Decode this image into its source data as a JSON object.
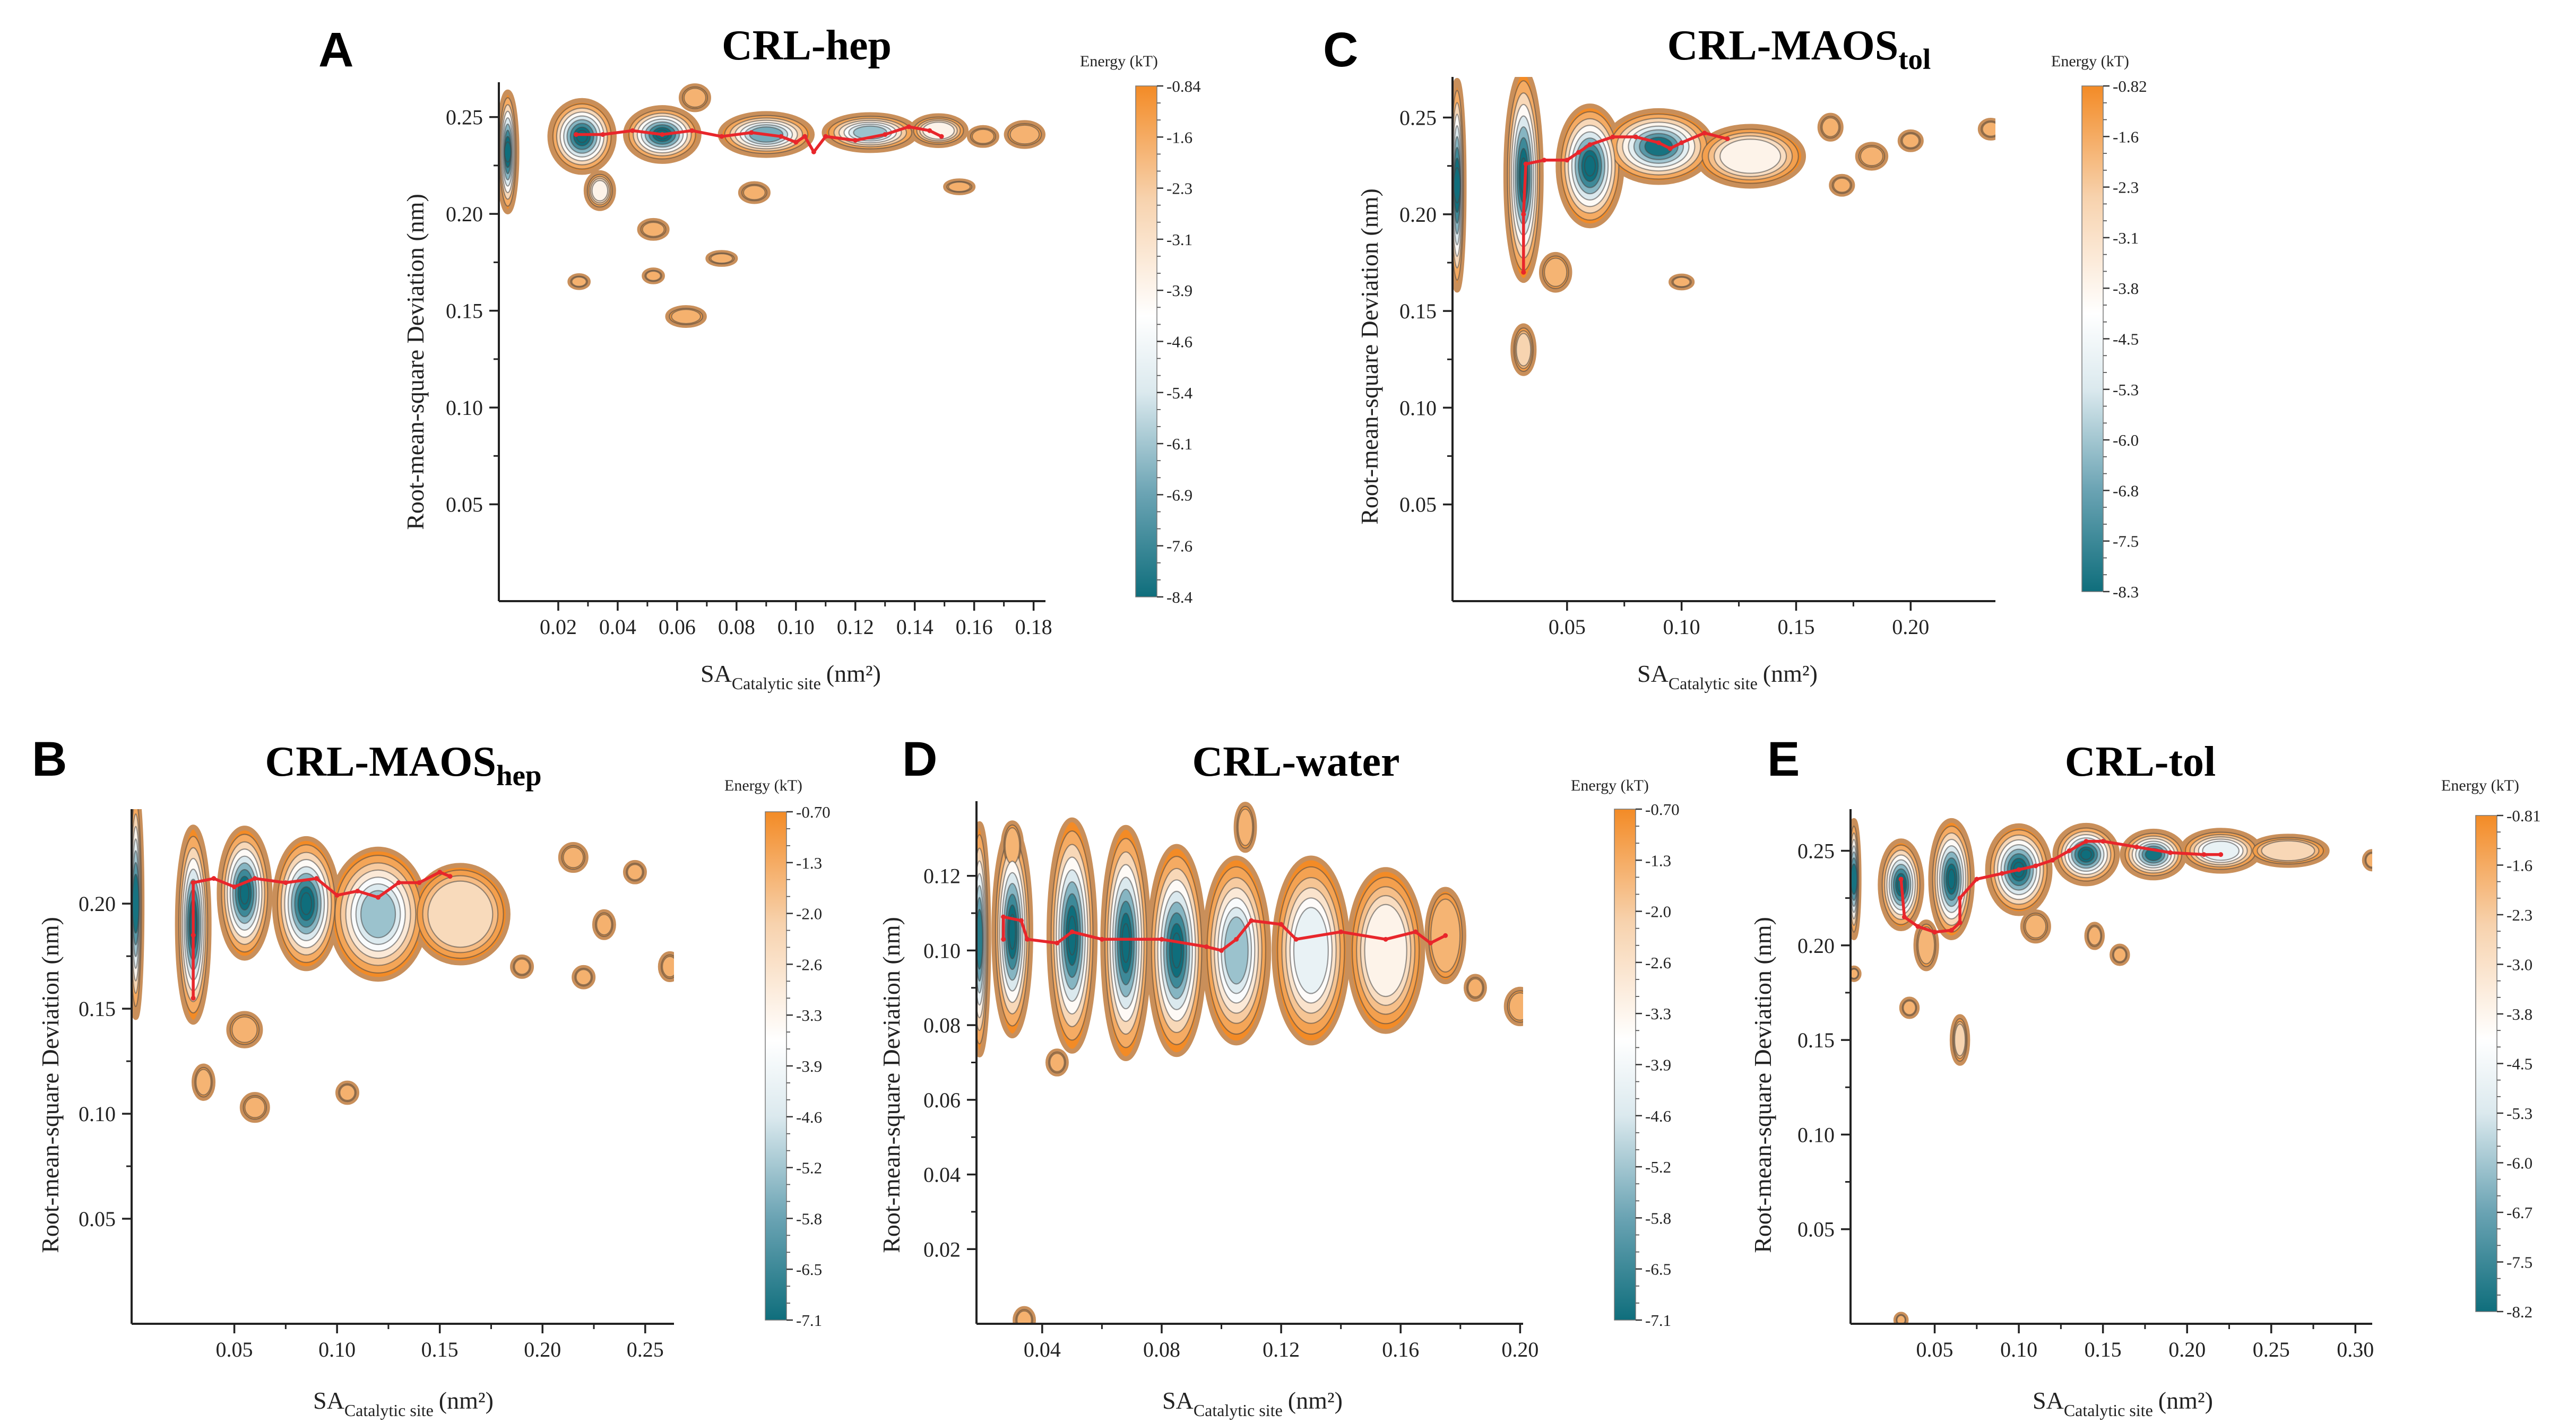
{
  "figure": {
    "energy_unit_label": "Energy (kT)",
    "colors": {
      "deep": "#0f6e7c",
      "mid": "#6aa3b3",
      "light": "#dbe9ee",
      "white": "#ffffff",
      "peach": "#f7d2ad",
      "orange": "#f38b26",
      "rim": "#c98f5a",
      "path": "#e8262b",
      "axis": "#222222"
    }
  },
  "chart_data": [
    {
      "id": "A",
      "type": "heatmap",
      "panel_letter": "A",
      "title": "CRL-hep",
      "title_sub": "",
      "xlabel_main": "SA",
      "xlabel_sub": "Catalytic site",
      "xlabel_unit": "(nm²)",
      "ylabel": "Root-mean-square Deviation (nm)",
      "xlim": [
        0.0,
        0.184
      ],
      "ylim": [
        0.0,
        0.268
      ],
      "xticks": [
        "0.02",
        "0.04",
        "0.06",
        "0.08",
        "0.10",
        "0.12",
        "0.14",
        "0.16",
        "0.18"
      ],
      "yticks": [
        "0.05",
        "0.10",
        "0.15",
        "0.20",
        "0.25"
      ],
      "colorbar_ticks": [
        "-0.84",
        "-1.6",
        "-2.3",
        "-3.1",
        "-3.9",
        "-4.6",
        "-5.4",
        "-6.1",
        "-6.9",
        "-7.6",
        "-8.4"
      ],
      "wells": [
        [
          0.003,
          0.232,
          0.002,
          0.02,
          2.2
        ],
        [
          0.028,
          0.24,
          0.007,
          0.012,
          2.0
        ],
        [
          0.055,
          0.241,
          0.008,
          0.009,
          1.8
        ],
        [
          0.09,
          0.241,
          0.01,
          0.007,
          1.4
        ],
        [
          0.125,
          0.242,
          0.01,
          0.006,
          1.2
        ],
        [
          0.148,
          0.243,
          0.006,
          0.005,
          0.8
        ],
        [
          0.034,
          0.212,
          0.003,
          0.006,
          0.8
        ],
        [
          0.052,
          0.192,
          0.003,
          0.003,
          0.3
        ],
        [
          0.086,
          0.211,
          0.003,
          0.003,
          0.3
        ],
        [
          0.027,
          0.165,
          0.002,
          0.002,
          0.3
        ],
        [
          0.063,
          0.147,
          0.004,
          0.003,
          0.3
        ],
        [
          0.075,
          0.177,
          0.003,
          0.002,
          0.3
        ],
        [
          0.052,
          0.168,
          0.002,
          0.002,
          0.25
        ],
        [
          0.155,
          0.214,
          0.003,
          0.002,
          0.25
        ],
        [
          0.177,
          0.241,
          0.004,
          0.004,
          0.35
        ],
        [
          0.163,
          0.24,
          0.003,
          0.003,
          0.25
        ],
        [
          0.066,
          0.26,
          0.003,
          0.004,
          0.35
        ]
      ],
      "path": [
        [
          0.026,
          0.241
        ],
        [
          0.035,
          0.241
        ],
        [
          0.045,
          0.243
        ],
        [
          0.055,
          0.241
        ],
        [
          0.065,
          0.243
        ],
        [
          0.075,
          0.24
        ],
        [
          0.085,
          0.242
        ],
        [
          0.095,
          0.24
        ],
        [
          0.1,
          0.237
        ],
        [
          0.103,
          0.24
        ],
        [
          0.106,
          0.232
        ],
        [
          0.11,
          0.24
        ],
        [
          0.12,
          0.238
        ],
        [
          0.13,
          0.241
        ],
        [
          0.138,
          0.245
        ],
        [
          0.145,
          0.243
        ],
        [
          0.149,
          0.24
        ]
      ]
    },
    {
      "id": "C",
      "type": "heatmap",
      "panel_letter": "C",
      "title": "CRL-MAOS",
      "title_sub": "tol",
      "xlabel_main": "SA",
      "xlabel_sub": "Catalytic site",
      "xlabel_unit": "(nm²)",
      "ylabel": "Root-mean-square Deviation (nm)",
      "xlim": [
        0.0,
        0.237
      ],
      "ylim": [
        0.0,
        0.271
      ],
      "xticks": [
        "0.05",
        "0.10",
        "0.15",
        "0.20"
      ],
      "yticks": [
        "0.05",
        "0.10",
        "0.15",
        "0.20",
        "0.25"
      ],
      "colorbar_ticks": [
        "-0.82",
        "-1.6",
        "-2.3",
        "-3.1",
        "-3.8",
        "-4.5",
        "-5.3",
        "-6.0",
        "-6.8",
        "-7.5",
        "-8.3"
      ],
      "wells": [
        [
          0.002,
          0.215,
          0.002,
          0.035,
          1.8
        ],
        [
          0.031,
          0.22,
          0.005,
          0.035,
          2.4
        ],
        [
          0.06,
          0.225,
          0.009,
          0.02,
          1.9
        ],
        [
          0.09,
          0.235,
          0.015,
          0.012,
          1.6
        ],
        [
          0.13,
          0.23,
          0.015,
          0.01,
          0.8
        ],
        [
          0.031,
          0.13,
          0.003,
          0.008,
          0.5
        ],
        [
          0.045,
          0.17,
          0.004,
          0.006,
          0.4
        ],
        [
          0.1,
          0.165,
          0.003,
          0.002,
          0.3
        ],
        [
          0.183,
          0.23,
          0.004,
          0.004,
          0.35
        ],
        [
          0.2,
          0.238,
          0.003,
          0.003,
          0.3
        ],
        [
          0.165,
          0.245,
          0.003,
          0.004,
          0.3
        ],
        [
          0.235,
          0.244,
          0.003,
          0.003,
          0.3
        ],
        [
          0.17,
          0.215,
          0.003,
          0.003,
          0.25
        ]
      ],
      "path": [
        [
          0.031,
          0.17
        ],
        [
          0.031,
          0.2
        ],
        [
          0.032,
          0.226
        ],
        [
          0.04,
          0.228
        ],
        [
          0.05,
          0.228
        ],
        [
          0.055,
          0.232
        ],
        [
          0.06,
          0.236
        ],
        [
          0.07,
          0.24
        ],
        [
          0.08,
          0.24
        ],
        [
          0.09,
          0.237
        ],
        [
          0.095,
          0.234
        ],
        [
          0.1,
          0.237
        ],
        [
          0.11,
          0.242
        ],
        [
          0.12,
          0.239
        ]
      ]
    },
    {
      "id": "B",
      "type": "heatmap",
      "panel_letter": "B",
      "title": "CRL-MAOS",
      "title_sub": "hep",
      "xlabel_main": "SA",
      "xlabel_sub": "Catalytic site",
      "xlabel_unit": "(nm²)",
      "ylabel": "Root-mean-square Deviation (nm)",
      "xlim": [
        0.0,
        0.264
      ],
      "ylim": [
        0.0,
        0.245
      ],
      "xticks": [
        "0.05",
        "0.10",
        "0.15",
        "0.20",
        "0.25"
      ],
      "yticks": [
        "0.05",
        "0.10",
        "0.15",
        "0.20"
      ],
      "colorbar_ticks": [
        "-0.70",
        "-1.3",
        "-2.0",
        "-2.6",
        "-3.3",
        "-3.9",
        "-4.6",
        "-5.2",
        "-5.8",
        "-6.5",
        "-7.1"
      ],
      "wells": [
        [
          0.002,
          0.2,
          0.002,
          0.035,
          1.6
        ],
        [
          0.03,
          0.19,
          0.005,
          0.03,
          2.4
        ],
        [
          0.055,
          0.205,
          0.008,
          0.02,
          2.0
        ],
        [
          0.085,
          0.2,
          0.01,
          0.02,
          1.8
        ],
        [
          0.12,
          0.195,
          0.015,
          0.02,
          1.2
        ],
        [
          0.16,
          0.195,
          0.015,
          0.015,
          0.7
        ],
        [
          0.035,
          0.115,
          0.003,
          0.005,
          0.4
        ],
        [
          0.06,
          0.103,
          0.004,
          0.004,
          0.35
        ],
        [
          0.105,
          0.11,
          0.003,
          0.003,
          0.3
        ],
        [
          0.215,
          0.222,
          0.004,
          0.004,
          0.35
        ],
        [
          0.23,
          0.19,
          0.003,
          0.004,
          0.3
        ],
        [
          0.22,
          0.165,
          0.003,
          0.003,
          0.3
        ],
        [
          0.262,
          0.17,
          0.003,
          0.004,
          0.3
        ],
        [
          0.245,
          0.215,
          0.003,
          0.003,
          0.3
        ],
        [
          0.19,
          0.17,
          0.003,
          0.003,
          0.25
        ],
        [
          0.055,
          0.14,
          0.005,
          0.005,
          0.35
        ]
      ],
      "path": [
        [
          0.03,
          0.155
        ],
        [
          0.03,
          0.185
        ],
        [
          0.03,
          0.21
        ],
        [
          0.04,
          0.212
        ],
        [
          0.05,
          0.208
        ],
        [
          0.06,
          0.212
        ],
        [
          0.075,
          0.21
        ],
        [
          0.09,
          0.212
        ],
        [
          0.1,
          0.204
        ],
        [
          0.11,
          0.206
        ],
        [
          0.12,
          0.203
        ],
        [
          0.13,
          0.21
        ],
        [
          0.14,
          0.21
        ],
        [
          0.15,
          0.215
        ],
        [
          0.155,
          0.213
        ]
      ]
    },
    {
      "id": "D",
      "type": "heatmap",
      "panel_letter": "D",
      "title": "CRL-water",
      "title_sub": "",
      "xlabel_main": "SA",
      "xlabel_sub": "Catalytic site",
      "xlabel_unit": "(nm²)",
      "ylabel": "Root-mean-square Deviation (nm)",
      "xlim": [
        0.018,
        0.201
      ],
      "ylim": [
        0.0,
        0.14
      ],
      "xticks": [
        "0.04",
        "0.08",
        "0.12",
        "0.16",
        "0.20"
      ],
      "yticks": [
        "0.02",
        "0.04",
        "0.06",
        "0.08",
        "0.10",
        "0.12"
      ],
      "colorbar_ticks": [
        "-0.70",
        "-1.3",
        "-2.0",
        "-2.6",
        "-3.3",
        "-3.9",
        "-4.6",
        "-5.2",
        "-5.8",
        "-6.5",
        "-7.1"
      ],
      "wells": [
        [
          0.019,
          0.103,
          0.002,
          0.02,
          1.5
        ],
        [
          0.03,
          0.105,
          0.004,
          0.018,
          2.4
        ],
        [
          0.05,
          0.104,
          0.005,
          0.02,
          2.3
        ],
        [
          0.068,
          0.102,
          0.005,
          0.02,
          2.0
        ],
        [
          0.085,
          0.1,
          0.006,
          0.018,
          1.8
        ],
        [
          0.105,
          0.1,
          0.007,
          0.016,
          1.2
        ],
        [
          0.13,
          0.1,
          0.008,
          0.016,
          1.0
        ],
        [
          0.155,
          0.1,
          0.008,
          0.014,
          0.8
        ],
        [
          0.175,
          0.104,
          0.004,
          0.008,
          0.4
        ],
        [
          0.03,
          0.128,
          0.002,
          0.004,
          0.4
        ],
        [
          0.045,
          0.07,
          0.002,
          0.002,
          0.3
        ],
        [
          0.108,
          0.133,
          0.002,
          0.004,
          0.35
        ],
        [
          0.2,
          0.085,
          0.003,
          0.003,
          0.3
        ],
        [
          0.185,
          0.09,
          0.002,
          0.002,
          0.25
        ],
        [
          0.034,
          0.001,
          0.002,
          0.002,
          0.3
        ]
      ],
      "path": [
        [
          0.027,
          0.103
        ],
        [
          0.027,
          0.109
        ],
        [
          0.033,
          0.108
        ],
        [
          0.035,
          0.103
        ],
        [
          0.045,
          0.102
        ],
        [
          0.05,
          0.105
        ],
        [
          0.06,
          0.103
        ],
        [
          0.08,
          0.103
        ],
        [
          0.095,
          0.101
        ],
        [
          0.1,
          0.1
        ],
        [
          0.105,
          0.103
        ],
        [
          0.11,
          0.108
        ],
        [
          0.12,
          0.107
        ],
        [
          0.125,
          0.103
        ],
        [
          0.14,
          0.105
        ],
        [
          0.155,
          0.103
        ],
        [
          0.165,
          0.105
        ],
        [
          0.17,
          0.102
        ],
        [
          0.175,
          0.104
        ]
      ]
    },
    {
      "id": "E",
      "type": "heatmap",
      "panel_letter": "E",
      "title": "CRL-tol",
      "title_sub": "",
      "xlabel_main": "SA",
      "xlabel_sub": "Catalytic site",
      "xlabel_unit": "(nm²)",
      "ylabel": "Root-mean-square Deviation (nm)",
      "xlim": [
        0.0,
        0.31
      ],
      "ylim": [
        0.0,
        0.272
      ],
      "xticks": [
        "0.05",
        "0.10",
        "0.15",
        "0.20",
        "0.25",
        "0.30"
      ],
      "yticks": [
        "0.05",
        "0.10",
        "0.15",
        "0.20",
        "0.25"
      ],
      "colorbar_ticks": [
        "-0.81",
        "-1.6",
        "-2.3",
        "-3.0",
        "-3.8",
        "-4.5",
        "-5.3",
        "-6.0",
        "-6.7",
        "-7.5",
        "-8.2"
      ],
      "wells": [
        [
          0.002,
          0.235,
          0.002,
          0.02,
          1.6
        ],
        [
          0.03,
          0.232,
          0.008,
          0.015,
          2.2
        ],
        [
          0.06,
          0.235,
          0.008,
          0.02,
          2.0
        ],
        [
          0.1,
          0.24,
          0.012,
          0.015,
          2.0
        ],
        [
          0.14,
          0.248,
          0.012,
          0.01,
          1.8
        ],
        [
          0.18,
          0.248,
          0.012,
          0.008,
          1.6
        ],
        [
          0.22,
          0.25,
          0.015,
          0.007,
          1.0
        ],
        [
          0.26,
          0.25,
          0.015,
          0.005,
          0.6
        ],
        [
          0.065,
          0.15,
          0.003,
          0.008,
          0.5
        ],
        [
          0.035,
          0.167,
          0.003,
          0.003,
          0.35
        ],
        [
          0.045,
          0.2,
          0.004,
          0.008,
          0.45
        ],
        [
          0.11,
          0.21,
          0.005,
          0.005,
          0.4
        ],
        [
          0.145,
          0.205,
          0.003,
          0.004,
          0.35
        ],
        [
          0.16,
          0.195,
          0.003,
          0.003,
          0.3
        ],
        [
          0.31,
          0.245,
          0.003,
          0.003,
          0.3
        ],
        [
          0.03,
          0.002,
          0.002,
          0.002,
          0.3
        ],
        [
          0.002,
          0.185,
          0.002,
          0.002,
          0.3
        ]
      ],
      "path": [
        [
          0.03,
          0.235
        ],
        [
          0.032,
          0.215
        ],
        [
          0.04,
          0.21
        ],
        [
          0.05,
          0.207
        ],
        [
          0.06,
          0.208
        ],
        [
          0.065,
          0.212
        ],
        [
          0.065,
          0.225
        ],
        [
          0.075,
          0.235
        ],
        [
          0.09,
          0.238
        ],
        [
          0.1,
          0.24
        ],
        [
          0.11,
          0.242
        ],
        [
          0.12,
          0.245
        ],
        [
          0.13,
          0.25
        ],
        [
          0.14,
          0.255
        ],
        [
          0.15,
          0.255
        ],
        [
          0.17,
          0.252
        ],
        [
          0.19,
          0.249
        ],
        [
          0.21,
          0.248
        ],
        [
          0.22,
          0.248
        ]
      ]
    }
  ]
}
